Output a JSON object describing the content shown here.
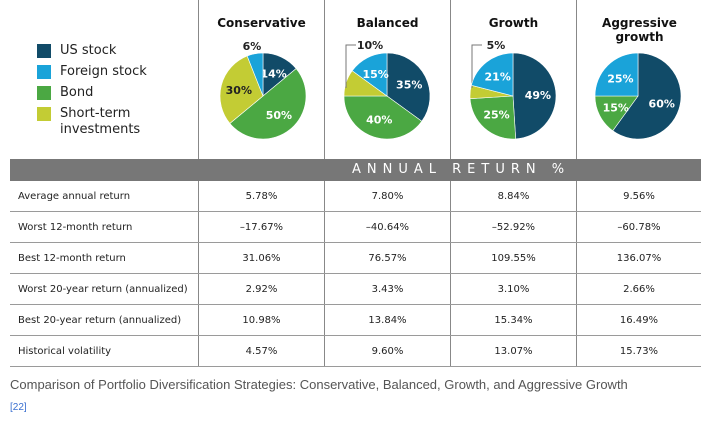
{
  "legend": [
    {
      "label": "US stock",
      "color": "#114b68"
    },
    {
      "label": "Foreign stock",
      "color": "#1aa3d9"
    },
    {
      "label": "Bond",
      "color": "#4ba843"
    },
    {
      "label": "Short-term investments",
      "color": "#c3cc34"
    }
  ],
  "chart_data": {
    "type": "pie",
    "title": "Comparison of Portfolio Diversification Strategies",
    "slice_order": [
      "US stock",
      "Bond",
      "Short-term investments",
      "Foreign stock"
    ],
    "colors": {
      "US stock": "#114b68",
      "Foreign stock": "#1aa3d9",
      "Bond": "#4ba843",
      "Short-term investments": "#c3cc34"
    },
    "charts": [
      {
        "name": "Conservative",
        "values": {
          "US stock": 14,
          "Foreign stock": 6,
          "Bond": 50,
          "Short-term investments": 30
        }
      },
      {
        "name": "Balanced",
        "values": {
          "US stock": 35,
          "Foreign stock": 15,
          "Bond": 40,
          "Short-term investments": 10
        }
      },
      {
        "name": "Growth",
        "values": {
          "US stock": 49,
          "Foreign stock": 21,
          "Bond": 25,
          "Short-term investments": 5
        }
      },
      {
        "name": "Aggressive growth",
        "values": {
          "US stock": 60,
          "Foreign stock": 25,
          "Bond": 15,
          "Short-term investments": 0
        }
      }
    ]
  },
  "table": {
    "band_label": "ANNUAL RETURN %",
    "columns": [
      "Conservative",
      "Balanced",
      "Growth",
      "Aggressive growth"
    ],
    "rows": [
      {
        "label": "Average annual return",
        "values": [
          "5.78%",
          "7.80%",
          "8.84%",
          "9.56%"
        ]
      },
      {
        "label": "Worst 12-month return",
        "values": [
          "–17.67%",
          "–40.64%",
          "–52.92%",
          "–60.78%"
        ]
      },
      {
        "label": "Best 12-month return",
        "values": [
          "31.06%",
          "76.57%",
          "109.55%",
          "136.07%"
        ]
      },
      {
        "label": "Worst 20-year return (annualized)",
        "values": [
          "2.92%",
          "3.43%",
          "3.10%",
          "2.66%"
        ]
      },
      {
        "label": "Best 20-year return (annualized)",
        "values": [
          "10.98%",
          "13.84%",
          "15.34%",
          "16.49%"
        ]
      },
      {
        "label": "Historical volatility",
        "values": [
          "4.57%",
          "9.60%",
          "13.07%",
          "15.73%"
        ]
      }
    ]
  },
  "caption": "Comparison of Portfolio Diversification Strategies: Conservative, Balanced, Growth, and Aggressive Growth",
  "reference": "[22]"
}
